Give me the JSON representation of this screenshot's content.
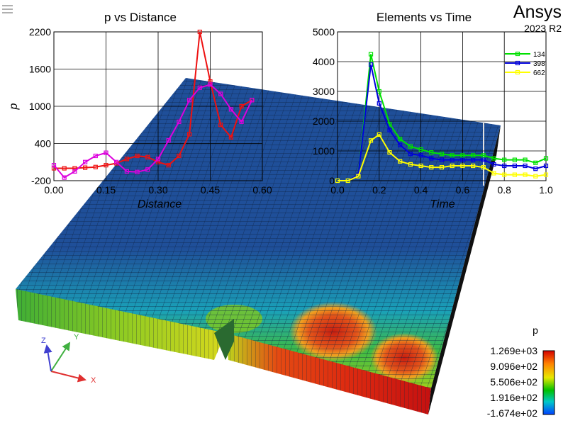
{
  "app": {
    "brand": "Ansys",
    "version": "2023 R2"
  },
  "menu": {
    "icon": "hamburger-menu-icon"
  },
  "legend": {
    "variable": "p",
    "levels": [
      "1.269e+03",
      "9.096e+02",
      "5.506e+02",
      "1.916e+02",
      "-1.674e+02"
    ],
    "colors": [
      "#cc0000",
      "#ff8000",
      "#e0e000",
      "#00c000",
      "#00c0c0",
      "#0050ff"
    ]
  },
  "triad": {
    "x": "X",
    "y": "Y",
    "z": "Z"
  },
  "probe_labels": [
    "134",
    "398",
    "662"
  ],
  "colors": {
    "mesh_edge": "#1e2a3a",
    "top_base": "#1f4f99"
  },
  "chart_data": [
    {
      "type": "line",
      "title": "p vs Distance",
      "xlabel": "Distance",
      "ylabel": "p",
      "xlim": [
        0,
        0.6
      ],
      "ylim": [
        -200,
        2200
      ],
      "xticks": [
        "0.00",
        "0.15",
        "0.30",
        "0.45",
        "0.60"
      ],
      "yticks": [
        "-200",
        "400",
        "1000",
        "1600",
        "2200"
      ],
      "grid": true,
      "series": [
        {
          "color": "#ee1111",
          "points": [
            [
              0,
              0
            ],
            [
              0.03,
              0
            ],
            [
              0.06,
              0
            ],
            [
              0.09,
              10
            ],
            [
              0.12,
              20
            ],
            [
              0.15,
              50
            ],
            [
              0.18,
              80
            ],
            [
              0.21,
              150
            ],
            [
              0.24,
              200
            ],
            [
              0.27,
              180
            ],
            [
              0.3,
              100
            ],
            [
              0.33,
              50
            ],
            [
              0.36,
              200
            ],
            [
              0.39,
              550
            ],
            [
              0.42,
              2250
            ],
            [
              0.45,
              1400
            ],
            [
              0.48,
              700
            ],
            [
              0.51,
              500
            ],
            [
              0.54,
              1000
            ],
            [
              0.57,
              1100
            ]
          ]
        },
        {
          "color": "#dd00dd",
          "points": [
            [
              0,
              50
            ],
            [
              0.03,
              -150
            ],
            [
              0.06,
              -50
            ],
            [
              0.09,
              100
            ],
            [
              0.12,
              200
            ],
            [
              0.15,
              250
            ],
            [
              0.18,
              100
            ],
            [
              0.21,
              -50
            ],
            [
              0.24,
              -60
            ],
            [
              0.27,
              -20
            ],
            [
              0.3,
              150
            ],
            [
              0.33,
              450
            ],
            [
              0.36,
              750
            ],
            [
              0.39,
              1100
            ],
            [
              0.42,
              1300
            ],
            [
              0.45,
              1350
            ],
            [
              0.48,
              1200
            ],
            [
              0.51,
              950
            ],
            [
              0.54,
              750
            ],
            [
              0.57,
              1100
            ]
          ]
        }
      ]
    },
    {
      "type": "line",
      "title": "Elements vs Time",
      "xlabel": "Time",
      "ylabel": "",
      "xlim": [
        0,
        1
      ],
      "ylim": [
        0,
        5000
      ],
      "xticks": [
        "0.0",
        "0.2",
        "0.4",
        "0.6",
        "0.8",
        "1.0"
      ],
      "yticks": [
        "0",
        "1000",
        "2000",
        "3000",
        "4000",
        "5000"
      ],
      "grid": true,
      "series": [
        {
          "name": "134",
          "color": "#00e000",
          "points": [
            [
              0,
              0
            ],
            [
              0.05,
              0
            ],
            [
              0.1,
              200
            ],
            [
              0.16,
              4250
            ],
            [
              0.2,
              3000
            ],
            [
              0.25,
              1900
            ],
            [
              0.3,
              1400
            ],
            [
              0.35,
              1150
            ],
            [
              0.4,
              1050
            ],
            [
              0.45,
              950
            ],
            [
              0.5,
              900
            ],
            [
              0.55,
              850
            ],
            [
              0.6,
              850
            ],
            [
              0.65,
              850
            ],
            [
              0.7,
              850
            ],
            [
              0.75,
              750
            ],
            [
              0.8,
              700
            ],
            [
              0.85,
              700
            ],
            [
              0.9,
              700
            ],
            [
              0.95,
              600
            ],
            [
              1.0,
              750
            ]
          ]
        },
        {
          "name": "398",
          "color": "#0000dd",
          "points": [
            [
              0,
              0
            ],
            [
              0.05,
              0
            ],
            [
              0.1,
              200
            ],
            [
              0.16,
              3900
            ],
            [
              0.2,
              2600
            ],
            [
              0.25,
              1700
            ],
            [
              0.3,
              1200
            ],
            [
              0.35,
              900
            ],
            [
              0.4,
              850
            ],
            [
              0.45,
              750
            ],
            [
              0.5,
              700
            ],
            [
              0.55,
              700
            ],
            [
              0.6,
              700
            ],
            [
              0.65,
              700
            ],
            [
              0.7,
              700
            ],
            [
              0.75,
              550
            ],
            [
              0.8,
              500
            ],
            [
              0.85,
              500
            ],
            [
              0.9,
              500
            ],
            [
              0.95,
              400
            ],
            [
              1.0,
              500
            ]
          ]
        },
        {
          "name": "662",
          "color": "#ffff00",
          "points": [
            [
              0,
              0
            ],
            [
              0.05,
              0
            ],
            [
              0.1,
              150
            ],
            [
              0.16,
              1350
            ],
            [
              0.2,
              1550
            ],
            [
              0.25,
              950
            ],
            [
              0.3,
              650
            ],
            [
              0.35,
              550
            ],
            [
              0.4,
              500
            ],
            [
              0.45,
              450
            ],
            [
              0.5,
              450
            ],
            [
              0.55,
              500
            ],
            [
              0.6,
              500
            ],
            [
              0.65,
              500
            ],
            [
              0.7,
              450
            ],
            [
              0.75,
              250
            ],
            [
              0.8,
              200
            ],
            [
              0.85,
              200
            ],
            [
              0.9,
              200
            ],
            [
              0.95,
              150
            ],
            [
              1.0,
              200
            ]
          ]
        }
      ]
    }
  ]
}
